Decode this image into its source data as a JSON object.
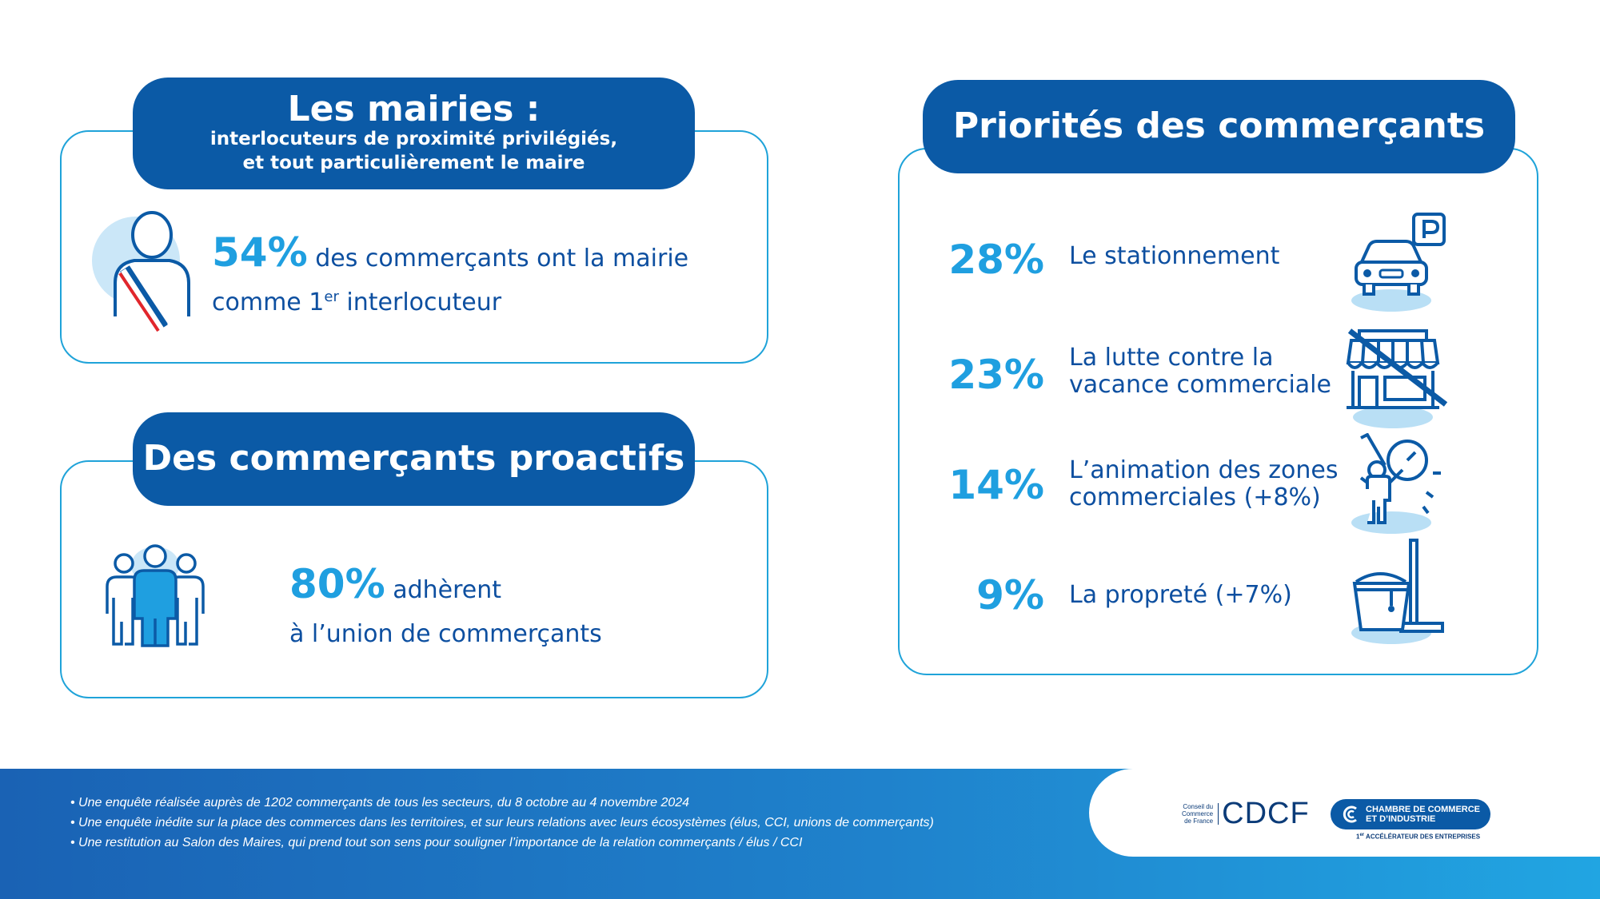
{
  "mairies": {
    "title": "Les mairies :",
    "subtitle_line1": "interlocuteurs de proximité privilégiés,",
    "subtitle_line2": "et tout particulièrement le maire",
    "percent": "54%",
    "text_part1": " des commerçants ont la mairie",
    "text_part2": "comme 1",
    "superscript": "er",
    "text_part3": " interlocuteur"
  },
  "proactifs": {
    "title": "Des commerçants proactifs",
    "percent": "80%",
    "text_part1": " adhèrent",
    "text_part2": "à l’union de commerçants"
  },
  "priorites": {
    "title": "Priorités des commerçants",
    "items": [
      {
        "percent": "28%",
        "label_line1": "Le stationnement",
        "label_line2": "",
        "icon": "parking-car-icon"
      },
      {
        "percent": "23%",
        "label_line1": "La lutte contre la",
        "label_line2": "vacance commerciale",
        "icon": "closed-shop-icon"
      },
      {
        "percent": "14%",
        "label_line1": "L’animation des zones",
        "label_line2": "commerciales (+8%)",
        "icon": "painter-icon"
      },
      {
        "percent": "9%",
        "label_line1": "La propreté (+7%)",
        "label_line2": "",
        "icon": "bucket-mop-icon"
      }
    ]
  },
  "footer": {
    "notes": [
      "• Une enquête réalisée auprès de 1202 commerçants de tous les secteurs, du 8 octobre au 4 novembre 2024",
      "• Une enquête inédite sur la place des commerces dans les territoires, et sur leurs relations avec leurs écosystèmes (élus, CCI, unions de commerçants)",
      "• Une restitution au Salon des Maires, qui prend tout son sens pour souligner l’importance de la relation commerçants / élus / CCI"
    ],
    "cdcf_small_line1": "Conseil du",
    "cdcf_small_line2": "Commerce",
    "cdcf_small_line3": "de France",
    "cdcf_logo": "CDCF",
    "cci_line1": "CHAMBRE DE COMMERCE",
    "cci_line2": "ET D’INDUSTRIE",
    "cci_tagline_sup": "er",
    "cci_tagline_num": "1",
    "cci_tagline": " ACCÉLÉRATEUR DES ENTREPRISES"
  },
  "colors": {
    "navy": "#0b5aa6",
    "accent": "#1f9fe0",
    "text": "#0d4fa0",
    "border": "#1fa3d9",
    "light": "#b9dff5",
    "red": "#e1262c"
  }
}
